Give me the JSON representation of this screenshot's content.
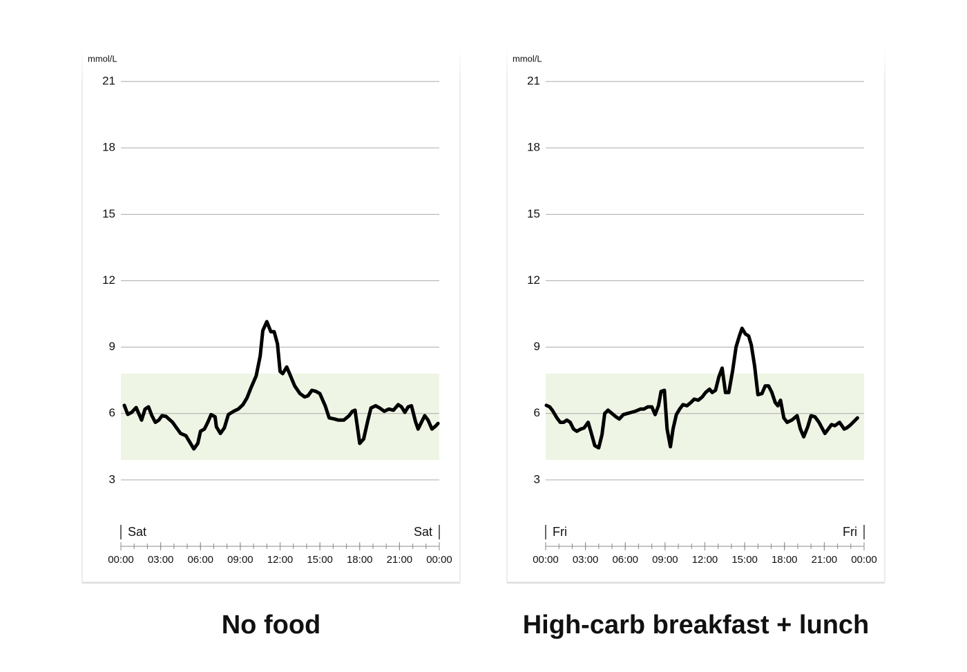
{
  "chart_data": [
    {
      "type": "line",
      "ylabel": "mmol/L",
      "caption": "No food",
      "day_labels": [
        "Sat",
        "Sat"
      ],
      "ylim": [
        0,
        22
      ],
      "yticks": [
        3,
        6,
        9,
        12,
        15,
        18,
        21
      ],
      "grid": true,
      "xlim": [
        0,
        24
      ],
      "xticks": [
        {
          "value": 0,
          "label": "00:00"
        },
        {
          "value": 3,
          "label": "03:00"
        },
        {
          "value": 6,
          "label": "06:00"
        },
        {
          "value": 9,
          "label": "09:00"
        },
        {
          "value": 12,
          "label": "12:00"
        },
        {
          "value": 15,
          "label": "15:00"
        },
        {
          "value": 18,
          "label": "18:00"
        },
        {
          "value": 21,
          "label": "21:00"
        },
        {
          "value": 24,
          "label": "00:00"
        }
      ],
      "xminorticks": [
        0,
        1,
        2,
        3,
        4,
        5,
        6,
        7,
        8,
        9,
        10,
        11,
        12,
        13,
        14,
        15,
        16,
        17,
        18,
        19,
        20,
        21,
        22,
        23,
        24
      ],
      "target_range": [
        3.9,
        7.8
      ],
      "target_color": "#eef5e4",
      "series": [
        {
          "color": "#000000",
          "x": [
            0.26,
            0.52,
            0.83,
            1.15,
            1.56,
            1.82,
            2.08,
            2.34,
            2.6,
            2.86,
            3.1,
            3.4,
            3.9,
            4.5,
            4.9,
            5.2,
            5.5,
            5.8,
            6.0,
            6.3,
            6.55,
            6.8,
            7.1,
            7.2,
            7.5,
            7.8,
            8.1,
            8.5,
            8.85,
            9.2,
            9.5,
            9.8,
            10.2,
            10.5,
            10.7,
            11.0,
            11.3,
            11.55,
            11.8,
            12.0,
            12.2,
            12.5,
            12.75,
            13.1,
            13.5,
            13.85,
            14.1,
            14.4,
            14.7,
            15.0,
            15.4,
            15.7,
            16.1,
            16.4,
            16.8,
            17.2,
            17.45,
            17.65,
            18.0,
            18.3,
            18.6,
            18.85,
            19.2,
            19.5,
            19.85,
            20.2,
            20.55,
            20.9,
            21.15,
            21.4,
            21.65,
            21.9,
            22.2,
            22.4,
            22.65,
            22.9,
            23.15,
            23.45,
            23.75,
            23.9
          ],
          "values": [
            6.37,
            5.96,
            6.06,
            6.27,
            5.7,
            6.2,
            6.3,
            5.9,
            5.6,
            5.7,
            5.9,
            5.87,
            5.6,
            5.1,
            5.0,
            4.7,
            4.4,
            4.65,
            5.2,
            5.3,
            5.6,
            5.95,
            5.85,
            5.4,
            5.1,
            5.35,
            5.95,
            6.1,
            6.2,
            6.4,
            6.7,
            7.15,
            7.7,
            8.6,
            9.75,
            10.15,
            9.7,
            9.7,
            9.15,
            7.9,
            7.8,
            8.1,
            7.75,
            7.25,
            6.9,
            6.75,
            6.8,
            7.05,
            7.0,
            6.9,
            6.35,
            5.8,
            5.75,
            5.7,
            5.7,
            5.9,
            6.1,
            6.15,
            4.65,
            4.85,
            5.65,
            6.25,
            6.35,
            6.25,
            6.1,
            6.2,
            6.15,
            6.4,
            6.3,
            6.05,
            6.3,
            6.35,
            5.65,
            5.3,
            5.6,
            5.9,
            5.7,
            5.3,
            5.45,
            5.55
          ]
        }
      ]
    },
    {
      "type": "line",
      "ylabel": "mmol/L",
      "caption": "High-carb breakfast + lunch",
      "day_labels": [
        "Fri",
        "Fri"
      ],
      "ylim": [
        0,
        22
      ],
      "yticks": [
        3,
        6,
        9,
        12,
        15,
        18,
        21
      ],
      "grid": true,
      "xlim": [
        0,
        24
      ],
      "xticks": [
        {
          "value": 0,
          "label": "00:00"
        },
        {
          "value": 3,
          "label": "03:00"
        },
        {
          "value": 6,
          "label": "06:00"
        },
        {
          "value": 9,
          "label": "09:00"
        },
        {
          "value": 12,
          "label": "12:00"
        },
        {
          "value": 15,
          "label": "15:00"
        },
        {
          "value": 18,
          "label": "18:00"
        },
        {
          "value": 21,
          "label": "21:00"
        },
        {
          "value": 24,
          "label": "00:00"
        }
      ],
      "xminorticks": [
        0,
        1,
        2,
        3,
        4,
        5,
        6,
        7,
        8,
        9,
        10,
        11,
        12,
        13,
        14,
        15,
        16,
        17,
        18,
        19,
        20,
        21,
        22,
        23,
        24
      ],
      "target_range": [
        3.9,
        7.8
      ],
      "target_color": "#eef5e4",
      "series": [
        {
          "color": "#000000",
          "x": [
            0.05,
            0.3,
            0.5,
            0.85,
            1.1,
            1.35,
            1.6,
            1.85,
            2.1,
            2.35,
            2.65,
            2.9,
            3.2,
            3.4,
            3.7,
            4.0,
            4.25,
            4.45,
            4.7,
            5.0,
            5.3,
            5.55,
            5.85,
            6.15,
            6.45,
            6.75,
            7.15,
            7.4,
            7.7,
            8.0,
            8.25,
            8.5,
            8.7,
            8.95,
            9.15,
            9.4,
            9.6,
            9.85,
            10.1,
            10.35,
            10.65,
            10.95,
            11.2,
            11.5,
            11.8,
            12.05,
            12.35,
            12.55,
            12.8,
            13.05,
            13.3,
            13.55,
            13.8,
            14.1,
            14.35,
            14.6,
            14.8,
            15.05,
            15.3,
            15.5,
            15.75,
            16.0,
            16.3,
            16.55,
            16.8,
            17.05,
            17.3,
            17.5,
            17.7,
            17.95,
            18.2,
            18.55,
            18.95,
            19.2,
            19.45,
            19.75,
            20.0,
            20.3,
            20.6,
            21.05,
            21.3,
            21.55,
            21.8,
            22.15,
            22.5,
            22.7,
            23.0,
            23.5
          ],
          "values": [
            6.37,
            6.3,
            6.15,
            5.8,
            5.6,
            5.6,
            5.7,
            5.6,
            5.3,
            5.2,
            5.3,
            5.35,
            5.6,
            5.2,
            4.55,
            4.45,
            5.05,
            6.0,
            6.15,
            6.0,
            5.85,
            5.75,
            5.95,
            6.0,
            6.05,
            6.1,
            6.2,
            6.2,
            6.3,
            6.3,
            5.95,
            6.35,
            7.0,
            7.05,
            5.3,
            4.5,
            5.3,
            5.95,
            6.2,
            6.4,
            6.35,
            6.5,
            6.65,
            6.6,
            6.75,
            6.95,
            7.1,
            6.95,
            7.05,
            7.65,
            8.05,
            6.95,
            6.95,
            7.95,
            9.0,
            9.5,
            9.85,
            9.6,
            9.5,
            9.1,
            8.15,
            6.85,
            6.9,
            7.25,
            7.25,
            6.95,
            6.5,
            6.35,
            6.6,
            5.8,
            5.6,
            5.7,
            5.9,
            5.3,
            4.95,
            5.4,
            5.9,
            5.85,
            5.6,
            5.1,
            5.3,
            5.5,
            5.45,
            5.6,
            5.3,
            5.35,
            5.5,
            5.8
          ]
        }
      ]
    }
  ]
}
